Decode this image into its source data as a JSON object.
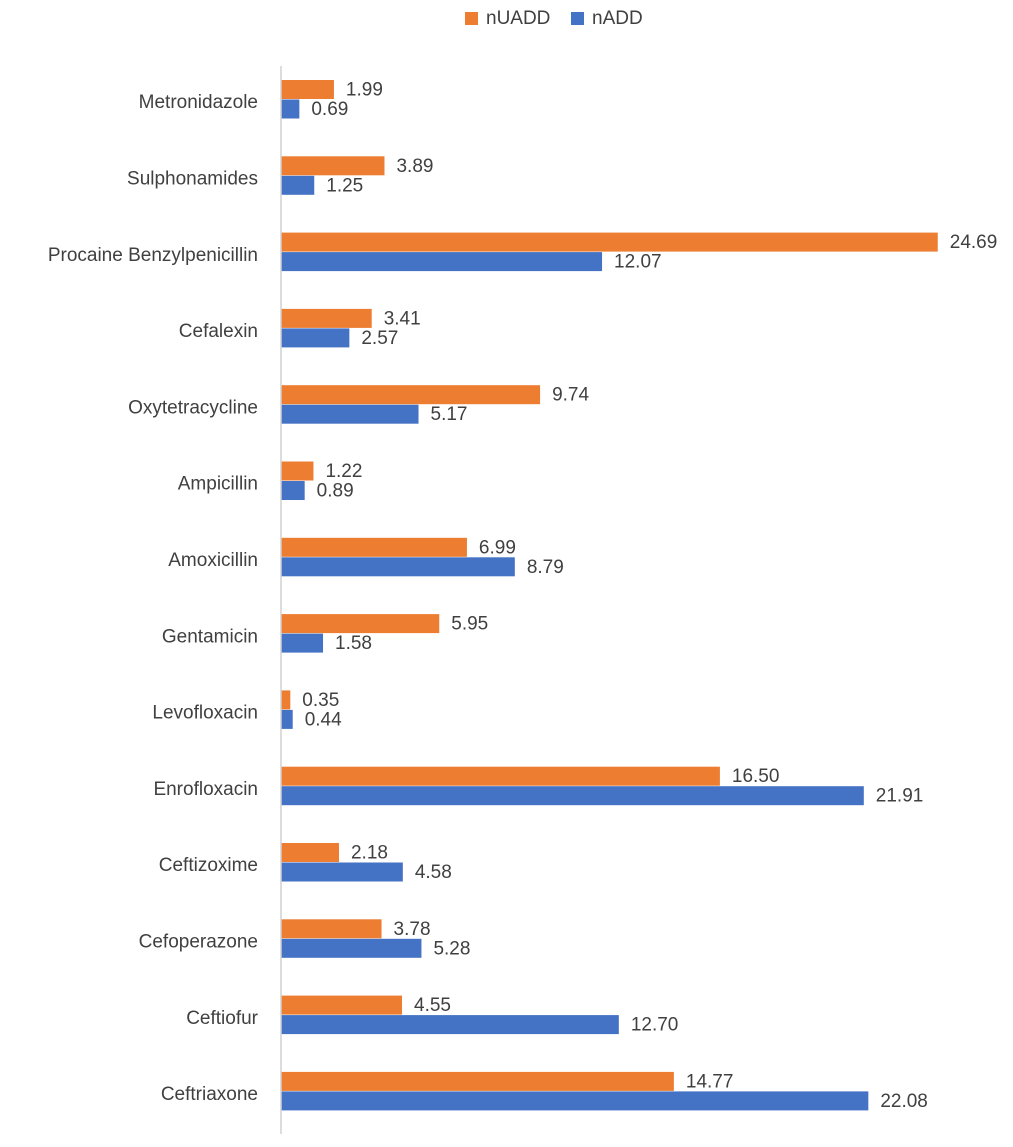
{
  "chart_data": {
    "type": "bar",
    "orientation": "horizontal",
    "title": "",
    "xlabel": "",
    "ylabel": "",
    "xlim": [
      0,
      25
    ],
    "grid": false,
    "legend_position": "top-center",
    "categories": [
      "Metronidazole",
      "Sulphonamides",
      "Procaine Benzylpenicillin",
      "Cefalexin",
      "Oxytetracycline",
      "Ampicillin",
      "Amoxicillin",
      "Gentamicin",
      "Levofloxacin",
      "Enrofloxacin",
      "Ceftizoxime",
      "Cefoperazone",
      "Ceftiofur",
      "Ceftriaxone"
    ],
    "series": [
      {
        "name": "nUADD",
        "color": "#ED7D31",
        "values": [
          1.99,
          3.89,
          24.69,
          3.41,
          9.74,
          1.22,
          6.99,
          5.95,
          0.35,
          16.5,
          2.18,
          3.78,
          4.55,
          14.77
        ],
        "labels": [
          "1.99",
          "3.89",
          "24.69",
          "3.41",
          "9.74",
          "1.22",
          "6.99",
          "5.95",
          "0.35",
          "16.50",
          "2.18",
          "3.78",
          "4.55",
          "14.77"
        ]
      },
      {
        "name": "nADD",
        "color": "#4472C4",
        "values": [
          0.69,
          1.25,
          12.07,
          2.57,
          5.17,
          0.89,
          8.79,
          1.58,
          0.44,
          21.91,
          4.58,
          5.28,
          12.7,
          22.08
        ],
        "labels": [
          "0.69",
          "1.25",
          "12.07",
          "2.57",
          "5.17",
          "0.89",
          "8.79",
          "1.58",
          "0.44",
          "21.91",
          "4.58",
          "5.28",
          "12.70",
          "22.08"
        ]
      }
    ]
  }
}
